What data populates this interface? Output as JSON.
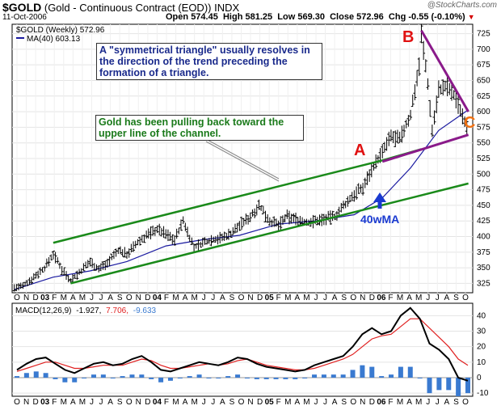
{
  "header": {
    "symbol": "$GOLD",
    "name": "(Gold - Continuous Contract (EOD))",
    "exchange": "INDX",
    "date": "11-Oct-2006",
    "open_label": "Open",
    "open": "574.45",
    "high_label": "High",
    "high": "581.25",
    "low_label": "Low",
    "low": "569.30",
    "close_label": "Close",
    "close": "572.96",
    "chg_label": "Chg",
    "chg": "-0.55 (-0.10%)",
    "brand": "@StockCharts.com"
  },
  "legend": {
    "price": "$GOLD (Weekly) 572.96",
    "ma": "MA(40) 603.13",
    "macd_label": "MACD(12,26,9)",
    "macd_value": "-1.927,",
    "signal_value": "7.706,",
    "hist_value": "-9.633"
  },
  "annotations": {
    "note_triangle": "A \"symmetrical triangle\" usually resolves in the direction of the trend preceding the formation of a triangle.",
    "note_channel": "Gold has been pulling back toward the upper line of the channel.",
    "point_a": "A",
    "point_b": "B",
    "point_c": "C",
    "ma_label": "40wMA"
  },
  "colors": {
    "price_bars": "#000000",
    "ma_line": "#1a1aa0",
    "channel": "#1a8a1a",
    "triangle": "#8a1a8a",
    "point_ab": "#e01010",
    "point_c": "#f07010",
    "arrow": "#1a3ad0",
    "macd": "#000000",
    "signal": "#e02020",
    "histogram": "#3a7ad0"
  },
  "chart_data": [
    {
      "type": "ohlc",
      "title": "$GOLD (Weekly)",
      "ylim": [
        310,
        740
      ],
      "y_ticks": [
        325,
        350,
        375,
        400,
        425,
        450,
        475,
        500,
        525,
        550,
        575,
        600,
        625,
        650,
        675,
        700,
        725
      ],
      "x_tick_labels": [
        "O",
        "N",
        "D",
        "03",
        "F",
        "M",
        "A",
        "M",
        "J",
        "J",
        "A",
        "S",
        "O",
        "N",
        "D",
        "04",
        "F",
        "M",
        "A",
        "M",
        "J",
        "J",
        "A",
        "S",
        "O",
        "N",
        "D",
        "05",
        "F",
        "M",
        "A",
        "M",
        "J",
        "J",
        "A",
        "S",
        "O",
        "N",
        "D",
        "06",
        "F",
        "M",
        "A",
        "M",
        "J",
        "J",
        "A",
        "S",
        "O"
      ],
      "price_path": [
        [
          "2002-10-04",
          318
        ],
        [
          "2002-11-01",
          320
        ],
        [
          "2002-12-06",
          335
        ],
        [
          "2003-01-10",
          350
        ],
        [
          "2003-02-07",
          372
        ],
        [
          "2003-03-07",
          348
        ],
        [
          "2003-04-04",
          330
        ],
        [
          "2003-05-02",
          342
        ],
        [
          "2003-06-06",
          360
        ],
        [
          "2003-07-04",
          348
        ],
        [
          "2003-08-01",
          358
        ],
        [
          "2003-09-05",
          378
        ],
        [
          "2003-10-03",
          372
        ],
        [
          "2003-11-07",
          390
        ],
        [
          "2003-12-05",
          402
        ],
        [
          "2004-01-09",
          412
        ],
        [
          "2004-02-06",
          404
        ],
        [
          "2004-03-05",
          395
        ],
        [
          "2004-04-02",
          425
        ],
        [
          "2004-05-07",
          382
        ],
        [
          "2004-06-04",
          390
        ],
        [
          "2004-07-02",
          395
        ],
        [
          "2004-08-06",
          398
        ],
        [
          "2004-09-03",
          405
        ],
        [
          "2004-10-01",
          418
        ],
        [
          "2004-11-05",
          432
        ],
        [
          "2004-12-03",
          450
        ],
        [
          "2005-01-07",
          425
        ],
        [
          "2005-02-04",
          418
        ],
        [
          "2005-03-04",
          432
        ],
        [
          "2005-04-01",
          428
        ],
        [
          "2005-05-06",
          422
        ],
        [
          "2005-06-03",
          425
        ],
        [
          "2005-07-01",
          428
        ],
        [
          "2005-08-05",
          432
        ],
        [
          "2005-09-02",
          448
        ],
        [
          "2005-10-07",
          468
        ],
        [
          "2005-11-04",
          478
        ],
        [
          "2005-12-02",
          508
        ],
        [
          "2006-01-06",
          535
        ],
        [
          "2006-02-03",
          560
        ],
        [
          "2006-03-03",
          555
        ],
        [
          "2006-04-07",
          595
        ],
        [
          "2006-05-05",
          675
        ],
        [
          "2006-05-12",
          725
        ],
        [
          "2006-06-02",
          645
        ],
        [
          "2006-06-16",
          570
        ],
        [
          "2006-07-07",
          635
        ],
        [
          "2006-08-04",
          640
        ],
        [
          "2006-09-01",
          620
        ],
        [
          "2006-09-22",
          595
        ],
        [
          "2006-10-11",
          573
        ]
      ],
      "ma40_path": [
        [
          "2002-10-04",
          315
        ],
        [
          "2003-02-07",
          335
        ],
        [
          "2003-06-06",
          345
        ],
        [
          "2003-10-03",
          360
        ],
        [
          "2004-02-06",
          385
        ],
        [
          "2004-06-04",
          395
        ],
        [
          "2004-10-01",
          402
        ],
        [
          "2005-02-04",
          420
        ],
        [
          "2005-06-03",
          425
        ],
        [
          "2005-10-07",
          435
        ],
        [
          "2006-01-06",
          462
        ],
        [
          "2006-04-07",
          510
        ],
        [
          "2006-07-07",
          570
        ],
        [
          "2006-10-11",
          603
        ]
      ],
      "lines": {
        "channel_upper": [
          [
            "2003-02-07",
            390
          ],
          [
            "2006-01-06",
            522
          ]
        ],
        "channel_lower": [
          [
            "2003-04-04",
            325
          ],
          [
            "2006-10-11",
            485
          ]
        ],
        "triangle_upper": [
          [
            "2006-05-12",
            730
          ],
          [
            "2006-10-11",
            600
          ]
        ],
        "triangle_lower": [
          [
            "2006-01-06",
            520
          ],
          [
            "2006-10-11",
            563
          ]
        ]
      },
      "last": 572.96,
      "ma40_last": 603.13
    },
    {
      "type": "line",
      "title": "MACD(12,26,9)",
      "ylim": [
        -12,
        48
      ],
      "y_ticks": [
        -10,
        0,
        10,
        20,
        30,
        40
      ],
      "series": [
        {
          "name": "MACD",
          "values": [
            5,
            9,
            12,
            13,
            9,
            5,
            3,
            6,
            9,
            10,
            8,
            9,
            12,
            14,
            10,
            5,
            4,
            6,
            8,
            10,
            9,
            8,
            10,
            13,
            12,
            9,
            7,
            6,
            5,
            4,
            5,
            8,
            10,
            12,
            14,
            20,
            28,
            32,
            28,
            30,
            40,
            45,
            38,
            22,
            18,
            12,
            0,
            -2
          ]
        },
        {
          "name": "Signal",
          "values": [
            4,
            6,
            8,
            10,
            10,
            8,
            6,
            6,
            7,
            8,
            8,
            8,
            10,
            12,
            11,
            8,
            6,
            6,
            7,
            8,
            9,
            8,
            9,
            11,
            12,
            10,
            8,
            7,
            6,
            5,
            5,
            6,
            8,
            10,
            12,
            15,
            20,
            25,
            27,
            28,
            33,
            38,
            38,
            32,
            26,
            20,
            12,
            8
          ]
        }
      ],
      "histogram": [
        1,
        3,
        4,
        3,
        -1,
        -3,
        -3,
        0,
        2,
        2,
        0,
        1,
        2,
        2,
        -1,
        -3,
        -2,
        0,
        1,
        2,
        0,
        0,
        1,
        2,
        0,
        -1,
        -1,
        -1,
        -1,
        -1,
        0,
        2,
        2,
        2,
        2,
        5,
        8,
        7,
        1,
        2,
        7,
        7,
        0,
        -10,
        -8,
        -8,
        -12,
        -10
      ]
    }
  ]
}
